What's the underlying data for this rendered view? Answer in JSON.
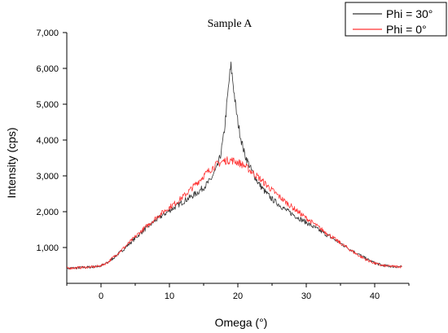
{
  "chart_data": {
    "type": "line",
    "title": "Sample A",
    "xlabel": "Omega (°)",
    "ylabel": "Intensity (cps)",
    "xlim": [
      -5,
      45
    ],
    "ylim": [
      0,
      7000
    ],
    "x_ticks": [
      0,
      10,
      20,
      30,
      40
    ],
    "x_tick_labels": [
      "0",
      "10",
      "20",
      "30",
      "40"
    ],
    "y_ticks": [
      1000,
      2000,
      3000,
      4000,
      5000,
      6000,
      7000
    ],
    "y_tick_labels": [
      "1,000",
      "2,000",
      "3,000",
      "4,000",
      "5,000",
      "6,000",
      "7,000"
    ],
    "grid": false,
    "legend_position": "top-right",
    "series": [
      {
        "name": "Phi = 30°",
        "color": "#333333",
        "points": [
          [
            -5,
            420
          ],
          [
            -3,
            440
          ],
          [
            -1,
            460
          ],
          [
            0,
            490
          ],
          [
            1,
            580
          ],
          [
            2,
            740
          ],
          [
            3,
            900
          ],
          [
            4,
            1080
          ],
          [
            5,
            1260
          ],
          [
            6,
            1440
          ],
          [
            7,
            1600
          ],
          [
            8,
            1760
          ],
          [
            9,
            1900
          ],
          [
            10,
            2030
          ],
          [
            11,
            2150
          ],
          [
            12,
            2280
          ],
          [
            13,
            2400
          ],
          [
            14,
            2520
          ],
          [
            15,
            2680
          ],
          [
            16,
            2880
          ],
          [
            17,
            3250
          ],
          [
            17.5,
            3600
          ],
          [
            18,
            4200
          ],
          [
            18.5,
            5200
          ],
          [
            18.8,
            5800
          ],
          [
            19,
            6050
          ],
          [
            19.3,
            5600
          ],
          [
            19.7,
            4900
          ],
          [
            20,
            4500
          ],
          [
            20.5,
            4000
          ],
          [
            21,
            3600
          ],
          [
            22,
            3150
          ],
          [
            23,
            2800
          ],
          [
            24,
            2550
          ],
          [
            25,
            2350
          ],
          [
            26,
            2200
          ],
          [
            27,
            2050
          ],
          [
            28,
            1930
          ],
          [
            29,
            1810
          ],
          [
            30,
            1700
          ],
          [
            31,
            1580
          ],
          [
            32,
            1470
          ],
          [
            33,
            1350
          ],
          [
            34,
            1240
          ],
          [
            35,
            1120
          ],
          [
            36,
            1000
          ],
          [
            37,
            880
          ],
          [
            38,
            770
          ],
          [
            39,
            660
          ],
          [
            40,
            570
          ],
          [
            41,
            510
          ],
          [
            42,
            480
          ],
          [
            43,
            465
          ],
          [
            44,
            460
          ]
        ]
      },
      {
        "name": "Phi = 0°",
        "color": "#ff3333",
        "points": [
          [
            -5,
            420
          ],
          [
            -3,
            440
          ],
          [
            -1,
            460
          ],
          [
            0,
            490
          ],
          [
            1,
            590
          ],
          [
            2,
            760
          ],
          [
            3,
            930
          ],
          [
            4,
            1110
          ],
          [
            5,
            1300
          ],
          [
            6,
            1480
          ],
          [
            7,
            1650
          ],
          [
            8,
            1820
          ],
          [
            9,
            1980
          ],
          [
            10,
            2120
          ],
          [
            11,
            2260
          ],
          [
            12,
            2420
          ],
          [
            13,
            2600
          ],
          [
            14,
            2800
          ],
          [
            15,
            3000
          ],
          [
            16,
            3180
          ],
          [
            17,
            3330
          ],
          [
            18,
            3420
          ],
          [
            19,
            3440
          ],
          [
            20,
            3380
          ],
          [
            21,
            3280
          ],
          [
            22,
            3120
          ],
          [
            23,
            2960
          ],
          [
            24,
            2780
          ],
          [
            25,
            2600
          ],
          [
            26,
            2430
          ],
          [
            27,
            2270
          ],
          [
            28,
            2120
          ],
          [
            29,
            1970
          ],
          [
            30,
            1820
          ],
          [
            31,
            1680
          ],
          [
            32,
            1540
          ],
          [
            33,
            1400
          ],
          [
            34,
            1260
          ],
          [
            35,
            1120
          ],
          [
            36,
            990
          ],
          [
            37,
            860
          ],
          [
            38,
            740
          ],
          [
            39,
            640
          ],
          [
            40,
            560
          ],
          [
            41,
            500
          ],
          [
            42,
            480
          ],
          [
            43,
            470
          ],
          [
            44,
            465
          ]
        ]
      }
    ]
  }
}
